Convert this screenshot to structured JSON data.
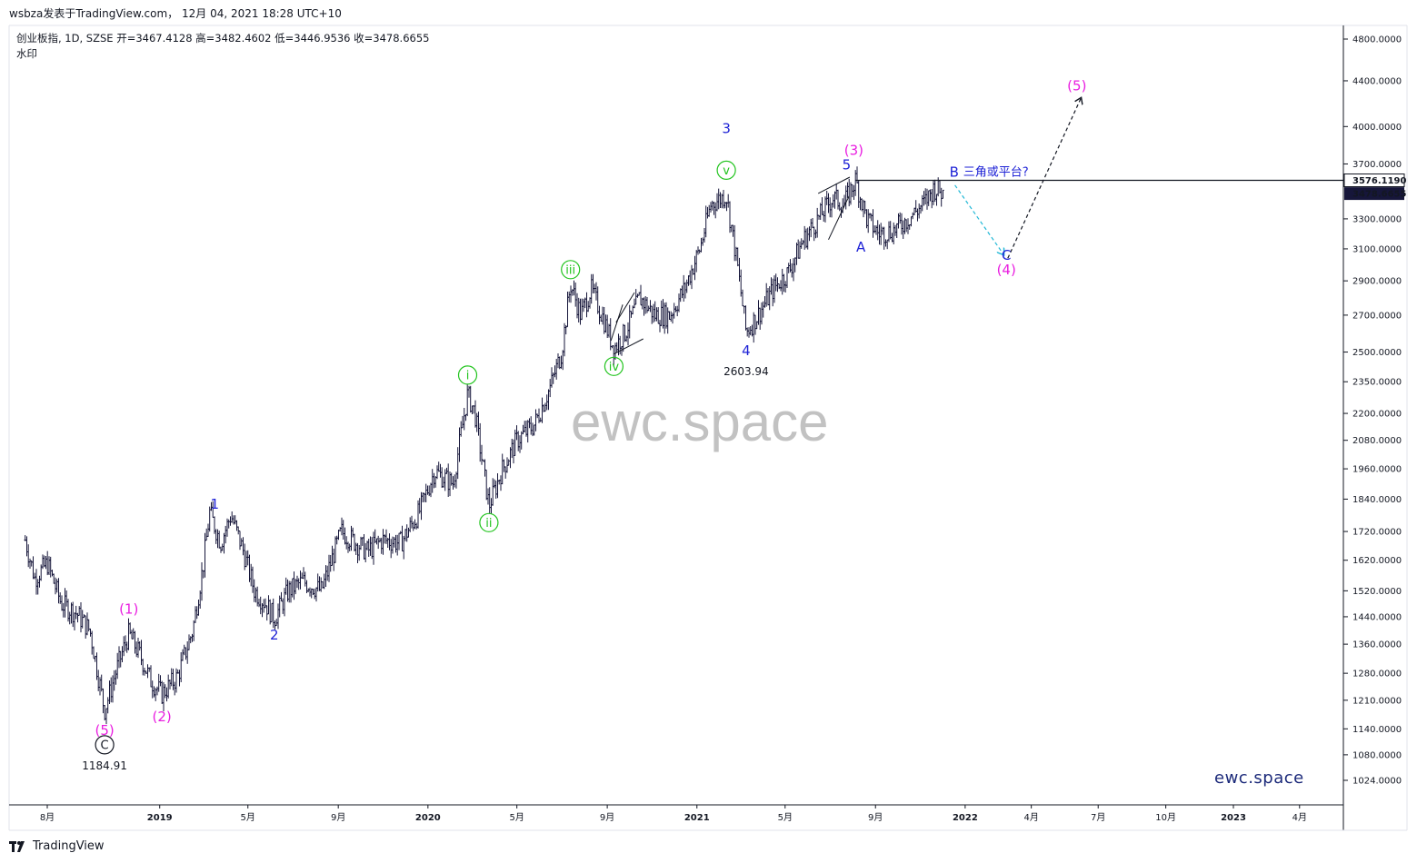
{
  "header": {
    "title": "wsbza发表于TradingView.com， 12月 04, 2021 18:28 UTC+10"
  },
  "legend": {
    "symbol_line": "创业板指, 1D, SZSE  开=3467.4128  高=3482.4602  低=3446.9536  收=3478.6655",
    "sub": "水印"
  },
  "watermark": "ewc.space",
  "brand": "ewc.space",
  "footer": {
    "logo": "TradingView"
  },
  "colors": {
    "candles": "#16163a",
    "magenta": "#e91ee0",
    "blue": "#1e22d6",
    "green": "#22c41e",
    "black": "#131722",
    "cyan_dash": "#22b8d6"
  },
  "chart_data": {
    "type": "line",
    "symbol": "创业板指",
    "interval": "1D",
    "exchange": "SZSE",
    "ohlc": {
      "open": 3467.4128,
      "high": 3482.4602,
      "low": 3446.9536,
      "close": 3478.6655
    },
    "x_ticks": [
      "8月",
      "2019",
      "5月",
      "9月",
      "2020",
      "5月",
      "9月",
      "2021",
      "5月",
      "9月",
      "2022",
      "4月",
      "7月",
      "10月",
      "2023",
      "4月"
    ],
    "y_ticks": [
      "4800.0000",
      "4400.0000",
      "4000.0000",
      "3700.0000",
      "3300.0000",
      "3100.0000",
      "2900.0000",
      "2700.0000",
      "2500.0000",
      "2350.0000",
      "2200.0000",
      "2080.0000",
      "1960.0000",
      "1840.0000",
      "1720.0000",
      "1620.0000",
      "1520.0000",
      "1440.0000",
      "1360.0000",
      "1280.0000",
      "1210.0000",
      "1140.0000",
      "1080.0000",
      "1024.0000"
    ],
    "y_scale": "log",
    "price_labels": [
      {
        "value": "3576.1190",
        "style": "outline"
      },
      {
        "value": "3478.6655",
        "style": "filled"
      }
    ],
    "horizontal_line": 3576.119,
    "series": [
      {
        "path": [
          [
            "2018-07-02",
            1690
          ],
          [
            "2018-07-15",
            1560
          ],
          [
            "2018-08-01",
            1610
          ],
          [
            "2018-08-20",
            1480
          ],
          [
            "2018-09-10",
            1450
          ],
          [
            "2018-09-28",
            1400
          ],
          [
            "2018-10-18",
            1184.91
          ],
          [
            "2018-11-05",
            1300
          ],
          [
            "2018-11-20",
            1390
          ],
          [
            "2018-12-05",
            1330
          ],
          [
            "2018-12-20",
            1260
          ],
          [
            "2019-01-04",
            1226
          ],
          [
            "2019-01-25",
            1270
          ],
          [
            "2019-02-15",
            1400
          ],
          [
            "2019-03-01",
            1600
          ],
          [
            "2019-03-10",
            1790
          ],
          [
            "2019-03-25",
            1680
          ],
          [
            "2019-04-08",
            1780
          ],
          [
            "2019-04-25",
            1650
          ],
          [
            "2019-05-10",
            1520
          ],
          [
            "2019-05-25",
            1480
          ],
          [
            "2019-06-06",
            1435
          ],
          [
            "2019-06-25",
            1520
          ],
          [
            "2019-07-15",
            1550
          ],
          [
            "2019-08-09",
            1520
          ],
          [
            "2019-09-05",
            1720
          ],
          [
            "2019-09-20",
            1690
          ],
          [
            "2019-10-10",
            1650
          ],
          [
            "2019-10-31",
            1690
          ],
          [
            "2019-11-25",
            1680
          ],
          [
            "2019-12-20",
            1790
          ],
          [
            "2020-01-10",
            1950
          ],
          [
            "2020-02-04",
            1900
          ],
          [
            "2020-02-24",
            2290
          ],
          [
            "2020-03-05",
            2200
          ],
          [
            "2020-03-24",
            1813
          ],
          [
            "2020-04-10",
            1950
          ],
          [
            "2020-05-01",
            2080
          ],
          [
            "2020-05-25",
            2150
          ],
          [
            "2020-06-15",
            2320
          ],
          [
            "2020-07-01",
            2500
          ],
          [
            "2020-07-13",
            2880
          ],
          [
            "2020-07-27",
            2700
          ],
          [
            "2020-08-10",
            2850
          ],
          [
            "2020-08-25",
            2700
          ],
          [
            "2020-09-10",
            2520
          ],
          [
            "2020-09-25",
            2600
          ],
          [
            "2020-10-15",
            2800
          ],
          [
            "2020-11-05",
            2700
          ],
          [
            "2020-11-25",
            2700
          ],
          [
            "2020-12-15",
            2850
          ],
          [
            "2021-01-05",
            3100
          ],
          [
            "2021-01-20",
            3400
          ],
          [
            "2021-02-10",
            3470
          ],
          [
            "2021-02-25",
            3000
          ],
          [
            "2021-03-09",
            2603.94
          ],
          [
            "2021-03-25",
            2700
          ],
          [
            "2021-04-15",
            2850
          ],
          [
            "2021-05-05",
            2950
          ],
          [
            "2021-05-25",
            3150
          ],
          [
            "2021-06-15",
            3300
          ],
          [
            "2021-07-05",
            3450
          ],
          [
            "2021-07-20",
            3400
          ],
          [
            "2021-08-05",
            3576
          ],
          [
            "2021-08-20",
            3300
          ],
          [
            "2021-09-05",
            3200
          ],
          [
            "2021-09-25",
            3220
          ],
          [
            "2021-10-15",
            3300
          ],
          [
            "2021-11-05",
            3400
          ],
          [
            "2021-11-20",
            3520
          ],
          [
            "2021-12-03",
            3478.6655
          ]
        ]
      }
    ],
    "annotations": {
      "prices": [
        "1184.91",
        "2603.94"
      ],
      "magenta": [
        "(1)",
        "(2)",
        "(3)",
        "(4)",
        "(5)",
        "(5)"
      ],
      "blue": [
        "1",
        "2",
        "3",
        "4",
        "5",
        "A",
        "B",
        "C"
      ],
      "green": [
        "i",
        "ii",
        "iii",
        "iv",
        "v"
      ],
      "circled_black": "C",
      "note": "三角或平台?"
    }
  }
}
